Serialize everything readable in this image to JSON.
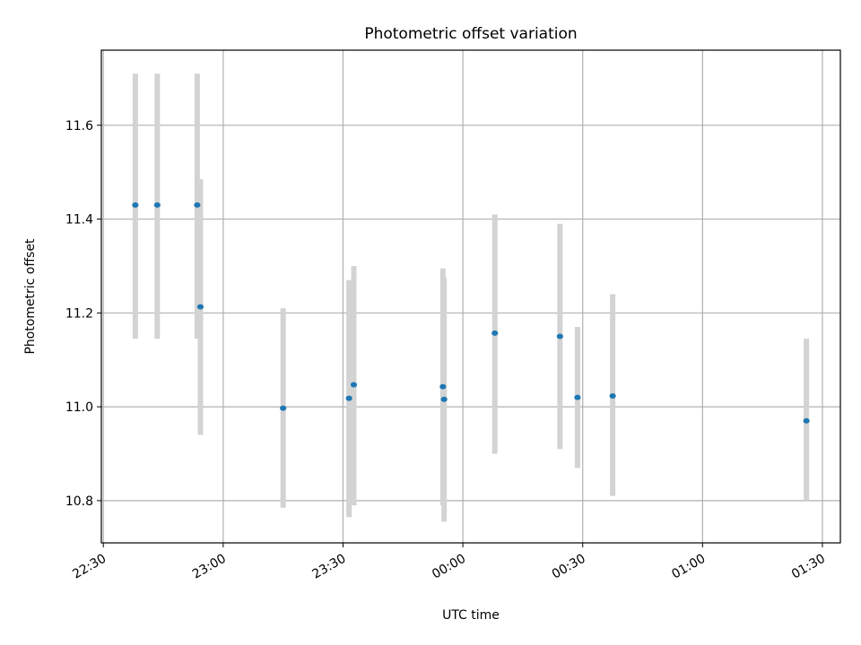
{
  "chart_data": {
    "type": "scatter",
    "title": "Photometric offset variation",
    "xlabel": "UTC time",
    "ylabel": "Photometric offset",
    "x_ticks": [
      "22:30",
      "23:00",
      "23:30",
      "00:00",
      "00:30",
      "01:00",
      "01:30"
    ],
    "y_ticks": [
      "10.8",
      "11.0",
      "11.2",
      "11.4",
      "11.6"
    ],
    "xlim": [
      "22:29:30",
      "01:34:30"
    ],
    "ylim": [
      10.71,
      11.76
    ],
    "grid": true,
    "point_color": "#1f77b4",
    "errorbar_color": "#d3d3d3",
    "points": [
      {
        "x": "22:38",
        "y": 11.43,
        "ylow": 11.145,
        "yhigh": 11.71
      },
      {
        "x": "22:43.5",
        "y": 11.43,
        "ylow": 11.145,
        "yhigh": 11.71
      },
      {
        "x": "22:53.5",
        "y": 11.43,
        "ylow": 11.145,
        "yhigh": 11.71
      },
      {
        "x": "22:54.3",
        "y": 11.213,
        "ylow": 10.94,
        "yhigh": 11.485
      },
      {
        "x": "23:15",
        "y": 10.997,
        "ylow": 10.785,
        "yhigh": 11.21
      },
      {
        "x": "23:31.5",
        "y": 11.018,
        "ylow": 10.765,
        "yhigh": 11.27
      },
      {
        "x": "23:32.7",
        "y": 11.047,
        "ylow": 10.79,
        "yhigh": 11.3
      },
      {
        "x": "23:55",
        "y": 11.043,
        "ylow": 10.79,
        "yhigh": 11.295
      },
      {
        "x": "23:55.3",
        "y": 11.016,
        "ylow": 10.755,
        "yhigh": 11.275
      },
      {
        "x": "00:08",
        "y": 11.157,
        "ylow": 10.9,
        "yhigh": 11.41
      },
      {
        "x": "00:24.3",
        "y": 11.15,
        "ylow": 10.91,
        "yhigh": 11.39
      },
      {
        "x": "00:28.7",
        "y": 11.02,
        "ylow": 10.87,
        "yhigh": 11.17
      },
      {
        "x": "00:37.5",
        "y": 11.023,
        "ylow": 10.81,
        "yhigh": 11.24
      },
      {
        "x": "01:26",
        "y": 10.97,
        "ylow": 10.8,
        "yhigh": 11.145
      }
    ]
  }
}
